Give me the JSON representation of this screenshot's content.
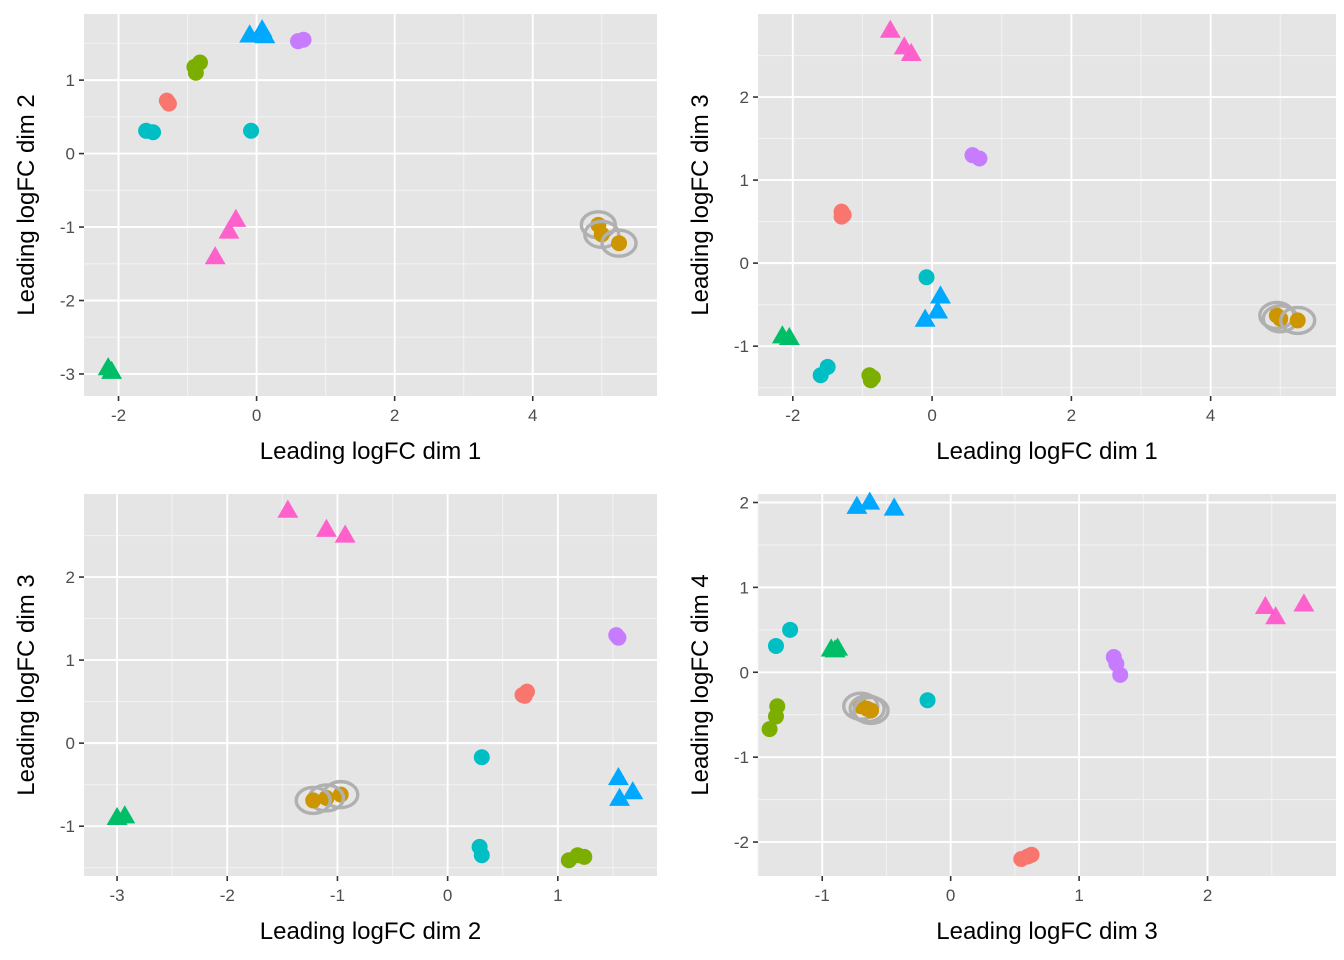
{
  "chart_data": [
    {
      "type": "scatter",
      "title": "",
      "xlabel": "Leading logFC dim 1",
      "ylabel": "Leading logFC dim 2",
      "xlim": [
        -2.5,
        5.8
      ],
      "ylim": [
        -3.3,
        1.9
      ],
      "xticks": [
        -2,
        0,
        2,
        4
      ],
      "yticks": [
        -3,
        -2,
        -1,
        0,
        1
      ],
      "grid": true,
      "legend": "none",
      "series": [
        {
          "name": "red",
          "color": "#F8766D",
          "shape": "circle",
          "points": [
            [
              -1.3,
              0.72
            ],
            [
              -1.27,
              0.68
            ]
          ]
        },
        {
          "name": "olive",
          "color": "#7CAE00",
          "shape": "circle",
          "points": [
            [
              -0.9,
              1.18
            ],
            [
              -0.82,
              1.24
            ],
            [
              -0.88,
              1.1
            ]
          ]
        },
        {
          "name": "teal",
          "color": "#00BFC4",
          "shape": "circle",
          "points": [
            [
              -1.6,
              0.31
            ],
            [
              -1.5,
              0.29
            ],
            [
              -0.08,
              0.31
            ]
          ]
        },
        {
          "name": "purple",
          "color": "#C77CFF",
          "shape": "circle",
          "points": [
            [
              0.6,
              1.53
            ],
            [
              0.68,
              1.55
            ]
          ]
        },
        {
          "name": "orange",
          "color": "#CD9600",
          "shape": "circle",
          "ring": true,
          "points": [
            [
              4.95,
              -0.97
            ],
            [
              5.0,
              -1.1
            ],
            [
              5.25,
              -1.22
            ]
          ]
        },
        {
          "name": "pink",
          "color": "#FF61CC",
          "shape": "triangle",
          "points": [
            [
              -0.3,
              -0.9
            ],
            [
              -0.4,
              -1.06
            ],
            [
              -0.6,
              -1.41
            ]
          ]
        },
        {
          "name": "blue",
          "color": "#00A9FF",
          "shape": "triangle",
          "points": [
            [
              -0.1,
              1.61
            ],
            [
              0.08,
              1.68
            ],
            [
              0.12,
              1.6
            ]
          ]
        },
        {
          "name": "green",
          "color": "#00BE67",
          "shape": "triangle",
          "points": [
            [
              -2.15,
              -2.92
            ],
            [
              -2.1,
              -2.97
            ]
          ]
        }
      ]
    },
    {
      "type": "scatter",
      "title": "",
      "xlabel": "Leading logFC dim 1",
      "ylabel": "Leading logFC dim 3",
      "xlim": [
        -2.5,
        5.8
      ],
      "ylim": [
        -1.6,
        3.0
      ],
      "xticks": [
        -2,
        0,
        2,
        4
      ],
      "yticks": [
        -1,
        0,
        1,
        2
      ],
      "grid": true,
      "legend": "none",
      "series": [
        {
          "name": "red",
          "color": "#F8766D",
          "shape": "circle",
          "points": [
            [
              -1.3,
              0.62
            ],
            [
              -1.27,
              0.58
            ],
            [
              -1.3,
              0.56
            ]
          ]
        },
        {
          "name": "olive",
          "color": "#7CAE00",
          "shape": "circle",
          "points": [
            [
              -0.9,
              -1.35
            ],
            [
              -0.85,
              -1.38
            ],
            [
              -0.88,
              -1.41
            ]
          ]
        },
        {
          "name": "teal",
          "color": "#00BFC4",
          "shape": "circle",
          "points": [
            [
              -1.6,
              -1.35
            ],
            [
              -1.5,
              -1.25
            ],
            [
              -0.08,
              -0.17
            ]
          ]
        },
        {
          "name": "purple",
          "color": "#C77CFF",
          "shape": "circle",
          "points": [
            [
              0.58,
              1.3
            ],
            [
              0.68,
              1.26
            ]
          ]
        },
        {
          "name": "orange",
          "color": "#CD9600",
          "shape": "circle",
          "ring": true,
          "points": [
            [
              4.95,
              -0.63
            ],
            [
              5.0,
              -0.67
            ],
            [
              5.25,
              -0.69
            ]
          ]
        },
        {
          "name": "pink",
          "color": "#FF61CC",
          "shape": "triangle",
          "points": [
            [
              -0.6,
              2.8
            ],
            [
              -0.4,
              2.6
            ],
            [
              -0.3,
              2.52
            ]
          ]
        },
        {
          "name": "blue",
          "color": "#00A9FF",
          "shape": "triangle",
          "points": [
            [
              -0.1,
              -0.68
            ],
            [
              0.08,
              -0.58
            ],
            [
              0.12,
              -0.4
            ]
          ]
        },
        {
          "name": "green",
          "color": "#00BE67",
          "shape": "triangle",
          "points": [
            [
              -2.15,
              -0.88
            ],
            [
              -2.05,
              -0.9
            ]
          ]
        }
      ]
    },
    {
      "type": "scatter",
      "title": "",
      "xlabel": "Leading logFC dim 2",
      "ylabel": "Leading logFC dim 3",
      "xlim": [
        -3.3,
        1.9
      ],
      "ylim": [
        -1.6,
        3.0
      ],
      "xticks": [
        -3,
        -2,
        -1,
        0,
        1
      ],
      "yticks": [
        -1,
        0,
        1,
        2
      ],
      "grid": true,
      "legend": "none",
      "series": [
        {
          "name": "red",
          "color": "#F8766D",
          "shape": "circle",
          "points": [
            [
              0.72,
              0.62
            ],
            [
              0.68,
              0.58
            ],
            [
              0.7,
              0.57
            ]
          ]
        },
        {
          "name": "olive",
          "color": "#7CAE00",
          "shape": "circle",
          "points": [
            [
              1.18,
              -1.35
            ],
            [
              1.24,
              -1.37
            ],
            [
              1.1,
              -1.41
            ]
          ]
        },
        {
          "name": "teal",
          "color": "#00BFC4",
          "shape": "circle",
          "points": [
            [
              0.31,
              -1.35
            ],
            [
              0.29,
              -1.25
            ],
            [
              0.31,
              -0.17
            ]
          ]
        },
        {
          "name": "purple",
          "color": "#C77CFF",
          "shape": "circle",
          "points": [
            [
              1.53,
              1.3
            ],
            [
              1.55,
              1.27
            ]
          ]
        },
        {
          "name": "orange",
          "color": "#CD9600",
          "shape": "circle",
          "ring": true,
          "points": [
            [
              -0.97,
              -0.62
            ],
            [
              -1.1,
              -0.66
            ],
            [
              -1.22,
              -0.69
            ]
          ]
        },
        {
          "name": "pink",
          "color": "#FF61CC",
          "shape": "triangle",
          "points": [
            [
              -1.45,
              2.8
            ],
            [
              -1.1,
              2.57
            ],
            [
              -0.93,
              2.5
            ]
          ]
        },
        {
          "name": "blue",
          "color": "#00A9FF",
          "shape": "triangle",
          "points": [
            [
              1.55,
              -0.42
            ],
            [
              1.68,
              -0.59
            ],
            [
              1.56,
              -0.67
            ]
          ]
        },
        {
          "name": "green",
          "color": "#00BE67",
          "shape": "triangle",
          "points": [
            [
              -3.0,
              -0.9
            ],
            [
              -2.93,
              -0.88
            ]
          ]
        }
      ]
    },
    {
      "type": "scatter",
      "title": "",
      "xlabel": "Leading logFC dim 3",
      "ylabel": "Leading logFC dim 4",
      "xlim": [
        -1.5,
        3.0
      ],
      "ylim": [
        -2.4,
        2.1
      ],
      "xticks": [
        -1,
        0,
        1,
        2
      ],
      "yticks": [
        -2,
        -1,
        0,
        1,
        2
      ],
      "grid": true,
      "legend": "none",
      "series": [
        {
          "name": "red",
          "color": "#F8766D",
          "shape": "circle",
          "points": [
            [
              0.55,
              -2.2
            ],
            [
              0.6,
              -2.17
            ],
            [
              0.63,
              -2.15
            ]
          ]
        },
        {
          "name": "olive",
          "color": "#7CAE00",
          "shape": "circle",
          "points": [
            [
              -1.35,
              -0.4
            ],
            [
              -1.36,
              -0.52
            ],
            [
              -1.41,
              -0.67
            ]
          ]
        },
        {
          "name": "teal",
          "color": "#00BFC4",
          "shape": "circle",
          "points": [
            [
              -1.36,
              0.31
            ],
            [
              -1.25,
              0.5
            ],
            [
              -0.18,
              -0.33
            ]
          ]
        },
        {
          "name": "purple",
          "color": "#C77CFF",
          "shape": "circle",
          "points": [
            [
              1.27,
              0.18
            ],
            [
              1.29,
              0.1
            ],
            [
              1.32,
              -0.03
            ]
          ]
        },
        {
          "name": "orange",
          "color": "#CD9600",
          "shape": "circle",
          "ring": true,
          "points": [
            [
              -0.7,
              -0.4
            ],
            [
              -0.65,
              -0.43
            ],
            [
              -0.62,
              -0.45
            ]
          ]
        },
        {
          "name": "pink",
          "color": "#FF61CC",
          "shape": "triangle",
          "points": [
            [
              2.45,
              0.77
            ],
            [
              2.53,
              0.65
            ],
            [
              2.75,
              0.8
            ]
          ]
        },
        {
          "name": "blue",
          "color": "#00A9FF",
          "shape": "triangle",
          "points": [
            [
              -0.73,
              1.95
            ],
            [
              -0.63,
              2.0
            ],
            [
              -0.44,
              1.93
            ]
          ]
        },
        {
          "name": "green",
          "color": "#00BE67",
          "shape": "triangle",
          "points": [
            [
              -0.93,
              0.27
            ],
            [
              -0.9,
              0.26
            ],
            [
              -0.88,
              0.28
            ]
          ]
        }
      ]
    }
  ]
}
